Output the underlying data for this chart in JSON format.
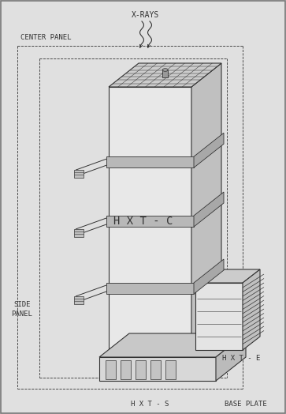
{
  "bg_color": "#e0e0e0",
  "line_color": "#333333",
  "fill_front": "#e8e8e8",
  "fill_top": "#cccccc",
  "fill_right": "#c0c0c0",
  "fill_divider": "#aaaaaa",
  "fill_base": "#d0d0d0",
  "fill_hxte": "#dedede",
  "labels": {
    "xrays": "X-RAYS",
    "center_panel": "CENTER PANEL",
    "side_panel_1": "SIDE",
    "side_panel_2": "PANEL",
    "hxt_c": "H X T - C",
    "hxt_s": "H X T - S",
    "hxt_e": "H X T - E",
    "base_plate": "BASE PLATE"
  },
  "fig_width": 3.63,
  "fig_height": 5.24,
  "dpi": 100
}
